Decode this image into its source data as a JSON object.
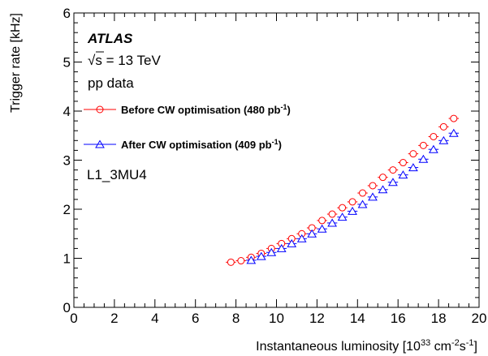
{
  "chart_data": {
    "type": "scatter",
    "xlabel": "Instantaneous luminosity [10",
    "xlabel_exp": "33",
    "xlabel_unit_a": " cm",
    "xlabel_unit_a_exp": "-2",
    "xlabel_unit_b": "s",
    "xlabel_unit_b_exp": "-1",
    "xlabel_close": "]",
    "ylabel": "Trigger rate [kHz]",
    "xlim": [
      0,
      20
    ],
    "ylim": [
      0,
      6
    ],
    "x_ticks": [
      0,
      2,
      4,
      6,
      8,
      10,
      12,
      14,
      16,
      18,
      20
    ],
    "y_ticks": [
      0,
      1,
      2,
      3,
      4,
      5,
      6
    ],
    "grid": false,
    "legend_position": "top-left",
    "annotations": {
      "experiment": "ATLAS",
      "sqrt_symbol": "√",
      "energy": "s = 13 TeV",
      "data_label": "pp data",
      "trigger": "L1_3MU4"
    },
    "series": [
      {
        "name": "Before CW optimisation (480 pb",
        "name_exp": "-1",
        "name_close": ")",
        "color": "#ff0000",
        "marker": "circle",
        "x": [
          7.75,
          8.25,
          8.75,
          9.25,
          9.75,
          10.25,
          10.75,
          11.25,
          11.75,
          12.25,
          12.75,
          13.25,
          13.75,
          14.25,
          14.75,
          15.25,
          15.75,
          16.25,
          16.75,
          17.25,
          17.75,
          18.25,
          18.75
        ],
        "y": [
          0.92,
          0.95,
          1.02,
          1.1,
          1.2,
          1.3,
          1.4,
          1.5,
          1.62,
          1.77,
          1.9,
          2.03,
          2.15,
          2.33,
          2.48,
          2.65,
          2.8,
          2.95,
          3.13,
          3.3,
          3.48,
          3.68,
          3.85
        ]
      },
      {
        "name": "After CW optimisation (409 pb",
        "name_exp": "-1",
        "name_close": ")",
        "color": "#0000ff",
        "marker": "triangle",
        "x": [
          8.75,
          9.25,
          9.75,
          10.25,
          10.75,
          11.25,
          11.75,
          12.25,
          12.75,
          13.25,
          13.75,
          14.25,
          14.75,
          15.25,
          15.75,
          16.25,
          16.75,
          17.25,
          17.75,
          18.25,
          18.75
        ],
        "y": [
          0.96,
          1.04,
          1.12,
          1.2,
          1.3,
          1.4,
          1.5,
          1.6,
          1.72,
          1.84,
          1.96,
          2.1,
          2.25,
          2.4,
          2.55,
          2.7,
          2.85,
          3.02,
          3.22,
          3.4,
          3.55
        ]
      }
    ]
  }
}
